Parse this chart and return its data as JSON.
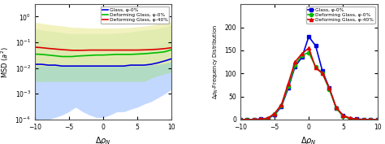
{
  "left": {
    "xlim": [
      -10,
      10
    ],
    "ylim": [
      0.0001,
      3
    ],
    "xlabel": "Δρ_N",
    "ylabel": "MSD (a²)",
    "xticks": [
      -10,
      -5,
      0,
      5,
      10
    ],
    "legend": [
      "Glass, φ-0%",
      "Deforming Glass, φ-0%",
      "Deforming Glass, φ-40%"
    ],
    "line_colors": [
      "#0000dd",
      "#00bb00",
      "#dd0000"
    ],
    "fill_blue": "#aac8ff",
    "fill_green": "#aaddaa",
    "fill_red": "#eeeeaa",
    "blue_x": [
      -10,
      -9,
      -8,
      -7,
      -6,
      -5,
      -4.5,
      -4,
      -3,
      -2,
      -1,
      0,
      1,
      2,
      3,
      4,
      5,
      6,
      7,
      8,
      9,
      10
    ],
    "blue_y": [
      0.014,
      0.014,
      0.013,
      0.013,
      0.012,
      0.012,
      0.012,
      0.012,
      0.012,
      0.012,
      0.012,
      0.012,
      0.012,
      0.012,
      0.012,
      0.013,
      0.013,
      0.013,
      0.014,
      0.016,
      0.019,
      0.023
    ],
    "blue_lo": [
      0.0001,
      0.0001,
      0.0001,
      0.00012,
      0.00015,
      0.0002,
      0.00025,
      0.0003,
      0.0002,
      0.00015,
      0.00012,
      0.00012,
      0.00015,
      0.0002,
      0.0002,
      0.00025,
      0.0003,
      0.0004,
      0.0005,
      0.0007,
      0.001,
      0.0015
    ],
    "blue_hi": [
      0.15,
      0.12,
      0.1,
      0.08,
      0.06,
      0.05,
      0.04,
      0.04,
      0.035,
      0.03,
      0.025,
      0.025,
      0.028,
      0.03,
      0.032,
      0.035,
      0.04,
      0.05,
      0.06,
      0.08,
      0.1,
      0.15
    ],
    "green_x": [
      -10,
      -9,
      -8,
      -7,
      -6,
      -5,
      -4.5,
      -4,
      -3,
      -2,
      -1,
      0,
      1,
      2,
      3,
      4,
      5,
      6,
      7,
      8,
      9,
      10
    ],
    "green_y": [
      0.035,
      0.034,
      0.032,
      0.03,
      0.028,
      0.028,
      0.028,
      0.029,
      0.03,
      0.031,
      0.032,
      0.032,
      0.033,
      0.034,
      0.034,
      0.034,
      0.035,
      0.036,
      0.038,
      0.04,
      0.043,
      0.052
    ],
    "green_lo": [
      0.003,
      0.003,
      0.003,
      0.003,
      0.003,
      0.003,
      0.003,
      0.003,
      0.003,
      0.003,
      0.003,
      0.003,
      0.003,
      0.003,
      0.003,
      0.003,
      0.003,
      0.003,
      0.004,
      0.005,
      0.006,
      0.007
    ],
    "green_hi": [
      0.35,
      0.3,
      0.28,
      0.26,
      0.24,
      0.22,
      0.22,
      0.22,
      0.22,
      0.22,
      0.22,
      0.22,
      0.22,
      0.23,
      0.24,
      0.25,
      0.28,
      0.3,
      0.32,
      0.36,
      0.4,
      0.5
    ],
    "red_x": [
      -10,
      -9,
      -8,
      -7,
      -6,
      -5,
      -4.5,
      -4,
      -3,
      -2,
      -1,
      0,
      1,
      2,
      3,
      4,
      5,
      6,
      7,
      8,
      9,
      10
    ],
    "red_y": [
      0.065,
      0.062,
      0.058,
      0.055,
      0.052,
      0.05,
      0.049,
      0.049,
      0.049,
      0.05,
      0.05,
      0.05,
      0.05,
      0.05,
      0.05,
      0.05,
      0.05,
      0.051,
      0.052,
      0.054,
      0.057,
      0.062
    ],
    "red_lo": [
      0.012,
      0.012,
      0.012,
      0.012,
      0.012,
      0.012,
      0.012,
      0.012,
      0.012,
      0.012,
      0.012,
      0.012,
      0.012,
      0.012,
      0.012,
      0.012,
      0.012,
      0.012,
      0.013,
      0.014,
      0.015,
      0.018
    ],
    "red_hi": [
      0.6,
      0.55,
      0.5,
      0.46,
      0.43,
      0.4,
      0.38,
      0.38,
      0.37,
      0.36,
      0.36,
      0.36,
      0.36,
      0.36,
      0.37,
      0.38,
      0.4,
      0.43,
      0.46,
      0.52,
      0.58,
      0.65
    ]
  },
  "right": {
    "xlim": [
      -10,
      10
    ],
    "ylim": [
      0,
      250
    ],
    "xlabel": "Δρ_N",
    "ylabel": "Δρ_N-Frequency Distribution",
    "xticks": [
      -10,
      -5,
      0,
      5,
      10
    ],
    "yticks": [
      0,
      50,
      100,
      150,
      200
    ],
    "legend": [
      "Glass, φ-0%",
      "Deforming Glass, φ-0%",
      "Deforming Glass, φ-40%"
    ],
    "line_colors": [
      "#0000dd",
      "#00bb00",
      "#dd0000"
    ],
    "markers": [
      "s",
      "o",
      "^"
    ],
    "blue_x": [
      -10,
      -9,
      -8,
      -7,
      -6,
      -5,
      -4,
      -3,
      -2,
      -1,
      0,
      1,
      2,
      3,
      4,
      5,
      6,
      7,
      8,
      9,
      10
    ],
    "blue_y": [
      0,
      0,
      0,
      1,
      2,
      10,
      28,
      68,
      115,
      135,
      180,
      160,
      105,
      68,
      25,
      9,
      2,
      1,
      0,
      0,
      0
    ],
    "green_x": [
      -10,
      -9,
      -8,
      -7,
      -6,
      -5,
      -4,
      -3,
      -2,
      -1,
      0,
      1,
      2,
      3,
      4,
      5,
      6,
      7,
      8,
      9,
      10
    ],
    "green_y": [
      0,
      0,
      0,
      0,
      2,
      12,
      30,
      72,
      118,
      140,
      145,
      115,
      100,
      65,
      25,
      7,
      2,
      0,
      0,
      0,
      0
    ],
    "red_x": [
      -10,
      -9,
      -8,
      -7,
      -6,
      -5,
      -4,
      -3,
      -2,
      -1,
      0,
      1,
      2,
      3,
      4,
      5,
      6,
      7,
      8,
      9,
      10
    ],
    "red_y": [
      0,
      0,
      0,
      1,
      3,
      13,
      32,
      78,
      125,
      143,
      155,
      112,
      100,
      68,
      26,
      9,
      3,
      1,
      0,
      0,
      0
    ]
  }
}
